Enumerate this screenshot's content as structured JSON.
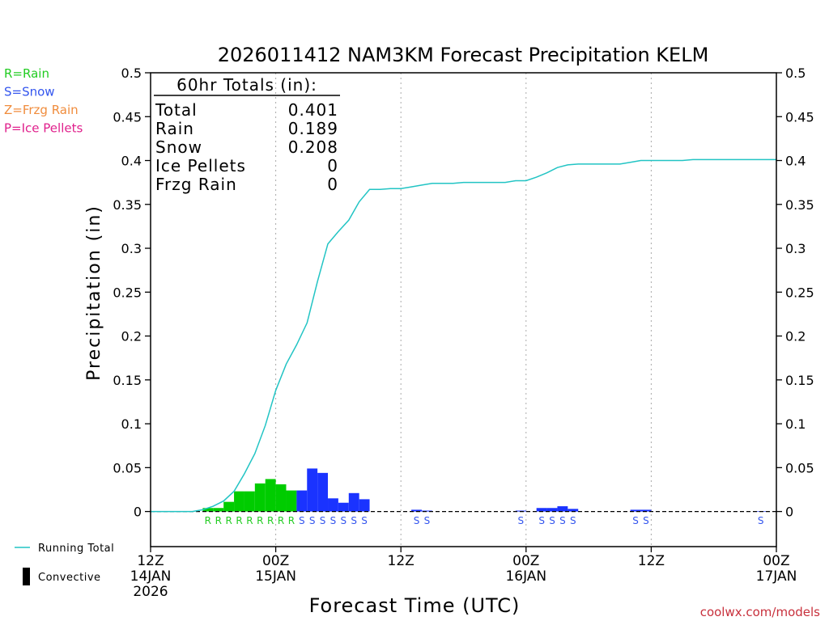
{
  "chart_data": {
    "type": "bar",
    "title": "2026011412 NAM3KM Forecast Precipitation KELM",
    "xlabel": "Forecast Time (UTC)",
    "ylabel": "Precipitation (in)",
    "ylim": [
      -0.04,
      0.5
    ],
    "xlim": [
      0,
      60
    ],
    "yticks": [
      0,
      0.05,
      0.1,
      0.15,
      0.2,
      0.25,
      0.3,
      0.35,
      0.4,
      0.45,
      0.5
    ],
    "ytick_labels": [
      "0",
      "0.05",
      "0.1",
      "0.15",
      "0.2",
      "0.25",
      "0.3",
      "0.35",
      "0.4",
      "0.45",
      "0.5"
    ],
    "xticks": [
      {
        "h": 0,
        "lines": [
          "12Z",
          "14JAN",
          "2026"
        ]
      },
      {
        "h": 12,
        "lines": [
          "00Z",
          "15JAN"
        ]
      },
      {
        "h": 24,
        "lines": [
          "12Z"
        ]
      },
      {
        "h": 36,
        "lines": [
          "00Z",
          "16JAN"
        ]
      },
      {
        "h": 48,
        "lines": [
          "12Z"
        ]
      },
      {
        "h": 60,
        "lines": [
          "00Z",
          "17JAN"
        ]
      }
    ],
    "vgrid_hours": [
      12,
      24,
      36,
      48
    ],
    "totals": {
      "header": "60hr Totals (in):",
      "rows": [
        {
          "label": "Total",
          "value": "0.401"
        },
        {
          "label": "Rain",
          "value": "0.189"
        },
        {
          "label": "Snow",
          "value": "0.208"
        },
        {
          "label": "Ice Pellets",
          "value": "0"
        },
        {
          "label": "Frzg Rain",
          "value": "0"
        }
      ]
    },
    "type_legend": [
      {
        "text": "R=Rain",
        "color": "#22cc22"
      },
      {
        "text": "S=Snow",
        "color": "#3355ee"
      },
      {
        "text": "Z=Frzg Rain",
        "color": "#f08c3c"
      },
      {
        "text": "P=Ice Pellets",
        "color": "#e0208c"
      }
    ],
    "series_legend": [
      {
        "name": "Running Total",
        "kind": "line",
        "color": "#22c4c4"
      },
      {
        "name": "Convective",
        "kind": "bar",
        "color": "#000000"
      }
    ],
    "colors": {
      "rain": "#00cc00",
      "snow": "#1a33ff",
      "line": "#22c4c4",
      "R": "#22cc22",
      "S": "#3355ee"
    },
    "bars": [
      {
        "h": 5,
        "v": 0.004,
        "t": "R"
      },
      {
        "h": 6,
        "v": 0.004,
        "t": "R"
      },
      {
        "h": 7,
        "v": 0.011,
        "t": "R"
      },
      {
        "h": 8,
        "v": 0.023,
        "t": "R"
      },
      {
        "h": 9,
        "v": 0.023,
        "t": "R"
      },
      {
        "h": 10,
        "v": 0.032,
        "t": "R"
      },
      {
        "h": 11,
        "v": 0.037,
        "t": "R"
      },
      {
        "h": 12,
        "v": 0.031,
        "t": "R"
      },
      {
        "h": 13,
        "v": 0.024,
        "t": "R"
      },
      {
        "h": 14,
        "v": 0.024,
        "t": "S"
      },
      {
        "h": 15,
        "v": 0.049,
        "t": "S"
      },
      {
        "h": 16,
        "v": 0.044,
        "t": "S"
      },
      {
        "h": 17,
        "v": 0.015,
        "t": "S"
      },
      {
        "h": 18,
        "v": 0.01,
        "t": "S"
      },
      {
        "h": 19,
        "v": 0.021,
        "t": "S"
      },
      {
        "h": 20,
        "v": 0.014,
        "t": "S"
      },
      {
        "h": 25,
        "v": 0.002,
        "t": "S"
      },
      {
        "h": 26,
        "v": 0.001,
        "t": "S"
      },
      {
        "h": 35,
        "v": 0.001,
        "t": "S"
      },
      {
        "h": 37,
        "v": 0.004,
        "t": "S"
      },
      {
        "h": 38,
        "v": 0.004,
        "t": "S"
      },
      {
        "h": 39,
        "v": 0.006,
        "t": "S"
      },
      {
        "h": 40,
        "v": 0.003,
        "t": "S"
      },
      {
        "h": 46,
        "v": 0.002,
        "t": "S"
      },
      {
        "h": 47,
        "v": 0.002,
        "t": "S"
      },
      {
        "h": 58,
        "v": 0.0005,
        "t": "S"
      }
    ],
    "running_total": {
      "x": [
        0,
        1,
        2,
        3,
        4,
        5,
        6,
        7,
        8,
        9,
        10,
        11,
        12,
        13,
        14,
        15,
        16,
        17,
        18,
        19,
        20,
        21,
        22,
        23,
        24,
        25,
        26,
        27,
        28,
        29,
        30,
        31,
        32,
        33,
        34,
        35,
        36,
        37,
        38,
        39,
        40,
        41,
        42,
        43,
        44,
        45,
        46,
        47,
        48,
        49,
        50,
        51,
        52,
        53,
        54,
        55,
        56,
        57,
        58,
        59,
        60
      ],
      "y": [
        0,
        0,
        0,
        0,
        0,
        0.002,
        0.006,
        0.012,
        0.023,
        0.043,
        0.066,
        0.098,
        0.138,
        0.168,
        0.19,
        0.215,
        0.262,
        0.305,
        0.319,
        0.332,
        0.353,
        0.367,
        0.367,
        0.368,
        0.368,
        0.37,
        0.372,
        0.374,
        0.374,
        0.374,
        0.375,
        0.375,
        0.375,
        0.375,
        0.375,
        0.377,
        0.377,
        0.381,
        0.386,
        0.392,
        0.395,
        0.396,
        0.396,
        0.396,
        0.396,
        0.396,
        0.398,
        0.4,
        0.4,
        0.4,
        0.4,
        0.4,
        0.401,
        0.401,
        0.401,
        0.401,
        0.401,
        0.401,
        0.401,
        0.401,
        0.401
      ]
    }
  },
  "watermark": "coolwx.com/models"
}
